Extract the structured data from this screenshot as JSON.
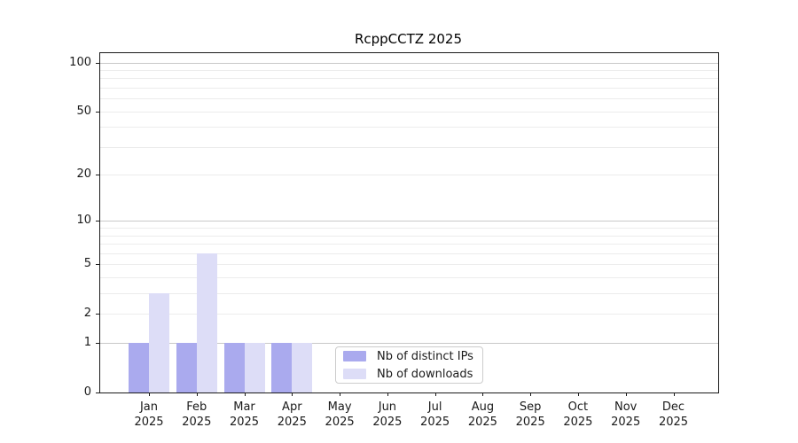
{
  "title": "RcppCCTZ 2025",
  "chart_data": {
    "type": "bar",
    "title": "RcppCCTZ 2025",
    "x_categories": [
      {
        "month": "Jan",
        "year": "2025"
      },
      {
        "month": "Feb",
        "year": "2025"
      },
      {
        "month": "Mar",
        "year": "2025"
      },
      {
        "month": "Apr",
        "year": "2025"
      },
      {
        "month": "May",
        "year": "2025"
      },
      {
        "month": "Jun",
        "year": "2025"
      },
      {
        "month": "Jul",
        "year": "2025"
      },
      {
        "month": "Aug",
        "year": "2025"
      },
      {
        "month": "Sep",
        "year": "2025"
      },
      {
        "month": "Oct",
        "year": "2025"
      },
      {
        "month": "Nov",
        "year": "2025"
      },
      {
        "month": "Dec",
        "year": "2025"
      }
    ],
    "series": [
      {
        "name": "Nb of distinct IPs",
        "color": "#aaaaee",
        "values": [
          1,
          1,
          1,
          1,
          0,
          0,
          0,
          0,
          0,
          0,
          0,
          0
        ]
      },
      {
        "name": "Nb of downloads",
        "color": "#ddddf7",
        "values": [
          3,
          6,
          1,
          1,
          0,
          0,
          0,
          0,
          0,
          0,
          0,
          0
        ]
      }
    ],
    "y_scale": "log1p",
    "y_ticks": [
      0,
      1,
      2,
      5,
      10,
      20,
      50,
      100
    ],
    "major_gridlines": [
      1,
      10,
      100
    ],
    "minor_gridlines": [
      2,
      3,
      4,
      5,
      6,
      7,
      8,
      9,
      20,
      30,
      40,
      50,
      60,
      70,
      80,
      90
    ],
    "ylim": [
      0,
      114
    ],
    "grid": true,
    "legend_position": "inside-bottom-center",
    "colors": {
      "grid_major": "#c8c8c8",
      "grid_minor": "#ececec",
      "axis": "#1a1a1a",
      "text": "#1a1a1a",
      "legend_border": "#cccccc",
      "background": "#ffffff"
    }
  }
}
